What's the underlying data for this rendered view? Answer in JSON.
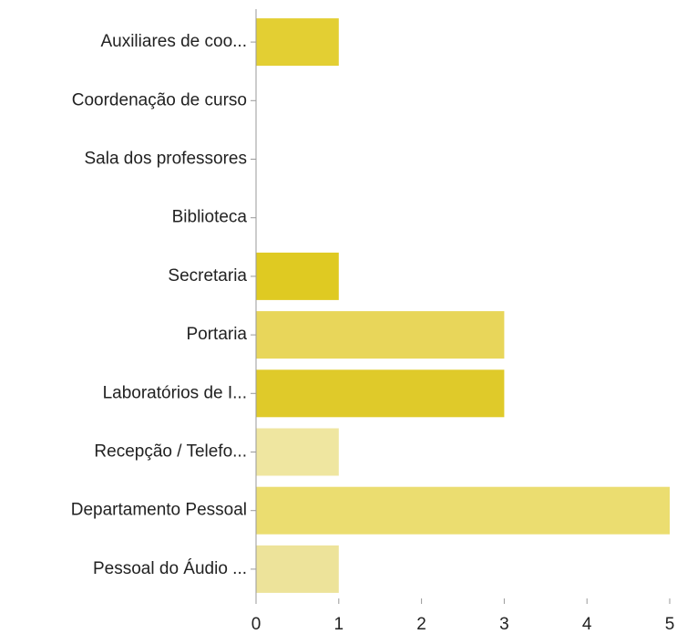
{
  "chart_data": {
    "type": "bar",
    "orientation": "horizontal",
    "categories": [
      "Auxiliares de coo...",
      "Coordenação de curso",
      "Sala dos professores",
      "Biblioteca",
      "Secretaria",
      "Portaria",
      "Laboratórios de I...",
      "Recepção / Telefo...",
      "Departamento Pessoal",
      "Pessoal do Áudio ..."
    ],
    "values": [
      1,
      0,
      0,
      0,
      1,
      3,
      3,
      1,
      5,
      1
    ],
    "colors": [
      "#e3cf33",
      null,
      null,
      null,
      "#dfca22",
      "#e8d65a",
      "#dfca2a",
      "#efe6a0",
      "#ebdd70",
      "#ede39a"
    ],
    "xlim": [
      0,
      5
    ],
    "xticks": [
      0,
      1,
      2,
      3,
      4,
      5
    ]
  }
}
